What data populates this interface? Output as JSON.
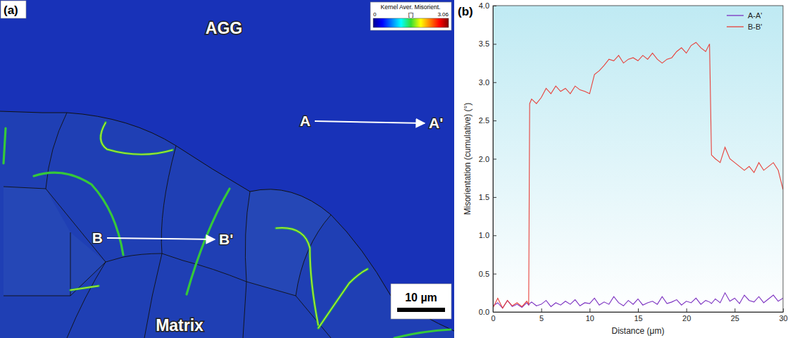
{
  "chart_data": [
    {
      "type": "map",
      "panel_label": "(a)",
      "region_labels": [
        "AGG",
        "Matrix"
      ],
      "profiles": [
        {
          "start": "A",
          "end": "A'"
        },
        {
          "start": "B",
          "end": "B'"
        }
      ],
      "colorbar": {
        "title": "Kernel Aver. Misorient.",
        "unit": "[°]",
        "range": [
          0,
          3.06
        ],
        "ticks": [
          0,
          3.06
        ]
      },
      "scale_bar": "10 µm"
    },
    {
      "type": "line",
      "panel_label": "(b)",
      "xlabel": "Distance (μm)",
      "ylabel": "Misorientation (cumulative) (°)",
      "xlim": [
        0,
        30
      ],
      "xticks": [
        0,
        5,
        10,
        15,
        20,
        25,
        30
      ],
      "ylim": [
        0,
        4
      ],
      "yticks": [
        {
          "value": 0,
          "label": "0.0"
        },
        {
          "value": 0.5,
          "label": "0.5"
        },
        {
          "value": 1,
          "label": "1.0"
        },
        {
          "value": 1.5,
          "label": "1.5"
        },
        {
          "value": 2,
          "label": "2.0"
        },
        {
          "value": 2.5,
          "label": "2.5"
        },
        {
          "value": 3,
          "label": "3.0"
        },
        {
          "value": 3.5,
          "label": "3.5"
        },
        {
          "value": 4,
          "label": "4.0"
        }
      ],
      "grid": false,
      "legend": "upper right",
      "x": [
        0,
        0.5,
        1,
        1.5,
        2,
        2.5,
        3,
        3.5,
        3.7,
        3.8,
        4,
        4.5,
        5,
        5.5,
        6,
        6.5,
        7,
        7.5,
        8,
        8.5,
        9,
        9.5,
        10,
        10.5,
        11,
        11.5,
        12,
        12.5,
        13,
        13.5,
        14,
        14.5,
        15,
        15.5,
        16,
        16.5,
        17,
        17.5,
        18,
        18.5,
        19,
        19.5,
        20,
        20.5,
        21,
        21.5,
        22,
        22.4,
        22.6,
        23,
        23.5,
        24,
        24.5,
        25,
        25.5,
        26,
        26.5,
        27,
        27.5,
        28,
        28.5,
        29,
        29.5,
        30
      ],
      "series": [
        {
          "name": "A-A'",
          "color": "#7a2fc0",
          "values": [
            0.08,
            0.12,
            0.05,
            0.15,
            0.07,
            0.1,
            0.06,
            0.12,
            0.09,
            0.11,
            0.13,
            0.08,
            0.1,
            0.15,
            0.07,
            0.12,
            0.09,
            0.14,
            0.1,
            0.16,
            0.08,
            0.12,
            0.11,
            0.18,
            0.09,
            0.13,
            0.1,
            0.2,
            0.12,
            0.08,
            0.15,
            0.1,
            0.17,
            0.09,
            0.12,
            0.14,
            0.1,
            0.2,
            0.11,
            0.13,
            0.16,
            0.09,
            0.14,
            0.12,
            0.18,
            0.1,
            0.15,
            0.13,
            0.11,
            0.17,
            0.12,
            0.25,
            0.14,
            0.18,
            0.11,
            0.22,
            0.15,
            0.13,
            0.2,
            0.12,
            0.17,
            0.22,
            0.14,
            0.18
          ]
        },
        {
          "name": "B-B'",
          "color": "#e8403a",
          "values": [
            0.05,
            0.18,
            0.05,
            0.15,
            0.08,
            0.12,
            0.07,
            0.14,
            0.1,
            2.72,
            2.78,
            2.72,
            2.8,
            2.92,
            2.85,
            2.95,
            2.88,
            2.92,
            2.85,
            2.95,
            2.9,
            2.88,
            2.85,
            3.1,
            3.15,
            3.22,
            3.3,
            3.28,
            3.35,
            3.25,
            3.3,
            3.32,
            3.28,
            3.35,
            3.3,
            3.38,
            3.3,
            3.25,
            3.3,
            3.32,
            3.4,
            3.45,
            3.38,
            3.48,
            3.52,
            3.45,
            3.4,
            3.5,
            2.05,
            2.0,
            1.95,
            2.15,
            2.0,
            1.95,
            1.9,
            1.85,
            1.9,
            1.82,
            1.95,
            1.85,
            1.9,
            1.95,
            1.85,
            1.6
          ]
        }
      ]
    }
  ]
}
